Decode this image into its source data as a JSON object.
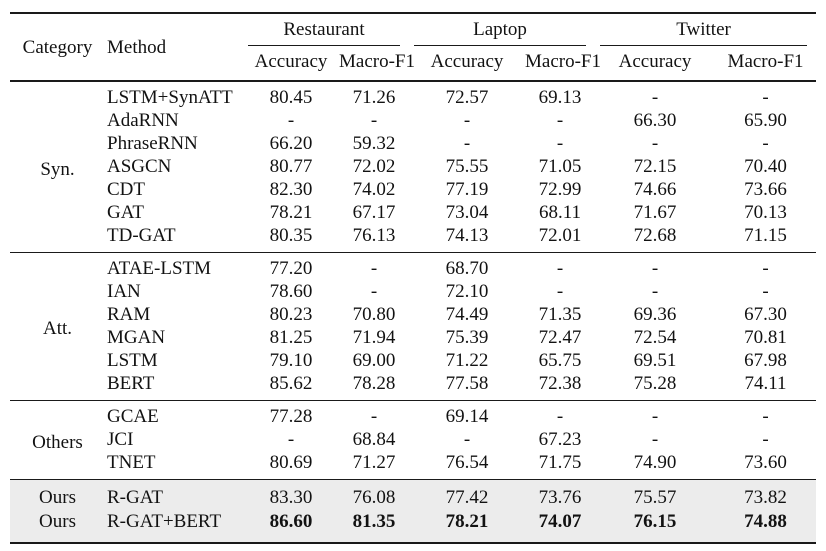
{
  "table": {
    "header": {
      "category": "Category",
      "method": "Method",
      "datasets": [
        "Restaurant",
        "Laptop",
        "Twitter"
      ],
      "metrics": [
        "Accuracy",
        "Macro-F1",
        "Accuracy",
        "Macro-F1",
        "Accuracy",
        "Macro-F1"
      ]
    },
    "groups": [
      {
        "category": "Syn.",
        "shaded": false,
        "rows": [
          {
            "method": "LSTM+SynATT",
            "values": [
              "80.45",
              "71.26",
              "72.57",
              "69.13",
              "-",
              "-"
            ]
          },
          {
            "method": "AdaRNN",
            "values": [
              "-",
              "-",
              "-",
              "-",
              "66.30",
              "65.90"
            ]
          },
          {
            "method": "PhraseRNN",
            "values": [
              "66.20",
              "59.32",
              "-",
              "-",
              "-",
              "-"
            ]
          },
          {
            "method": "ASGCN",
            "values": [
              "80.77",
              "72.02",
              "75.55",
              "71.05",
              "72.15",
              "70.40"
            ]
          },
          {
            "method": "CDT",
            "values": [
              "82.30",
              "74.02",
              "77.19",
              "72.99",
              "74.66",
              "73.66"
            ]
          },
          {
            "method": "GAT",
            "values": [
              "78.21",
              "67.17",
              "73.04",
              "68.11",
              "71.67",
              "70.13"
            ]
          },
          {
            "method": "TD-GAT",
            "values": [
              "80.35",
              "76.13",
              "74.13",
              "72.01",
              "72.68",
              "71.15"
            ]
          }
        ]
      },
      {
        "category": "Att.",
        "shaded": false,
        "rows": [
          {
            "method": "ATAE-LSTM",
            "values": [
              "77.20",
              "-",
              "68.70",
              "-",
              "-",
              "-"
            ]
          },
          {
            "method": "IAN",
            "values": [
              "78.60",
              "-",
              "72.10",
              "-",
              "-",
              "-"
            ]
          },
          {
            "method": "RAM",
            "values": [
              "80.23",
              "70.80",
              "74.49",
              "71.35",
              "69.36",
              "67.30"
            ]
          },
          {
            "method": "MGAN",
            "values": [
              "81.25",
              "71.94",
              "75.39",
              "72.47",
              "72.54",
              "70.81"
            ]
          },
          {
            "method": "LSTM",
            "values": [
              "79.10",
              "69.00",
              "71.22",
              "65.75",
              "69.51",
              "67.98"
            ]
          },
          {
            "method": "BERT",
            "values": [
              "85.62",
              "78.28",
              "77.58",
              "72.38",
              "75.28",
              "74.11"
            ]
          }
        ]
      },
      {
        "category": "Others",
        "shaded": false,
        "rows": [
          {
            "method": "GCAE",
            "values": [
              "77.28",
              "-",
              "69.14",
              "-",
              "-",
              "-"
            ]
          },
          {
            "method": "JCI",
            "values": [
              "-",
              "68.84",
              "-",
              "67.23",
              "-",
              "-"
            ]
          },
          {
            "method": "TNET",
            "values": [
              "80.69",
              "71.27",
              "76.54",
              "71.75",
              "74.90",
              "73.60"
            ]
          }
        ]
      },
      {
        "category": null,
        "shaded": true,
        "rows": [
          {
            "category": "Ours",
            "method": "R-GAT",
            "values": [
              "83.30",
              "76.08",
              "77.42",
              "73.76",
              "75.57",
              "73.82"
            ]
          },
          {
            "category": "Ours",
            "method": "R-GAT+BERT",
            "bold": true,
            "values": [
              "86.60",
              "81.35",
              "78.21",
              "74.07",
              "76.15",
              "74.88"
            ]
          }
        ]
      }
    ],
    "colors": {
      "shade": "#ececec",
      "rule": "#1a1a1a",
      "text": "#121212"
    }
  }
}
